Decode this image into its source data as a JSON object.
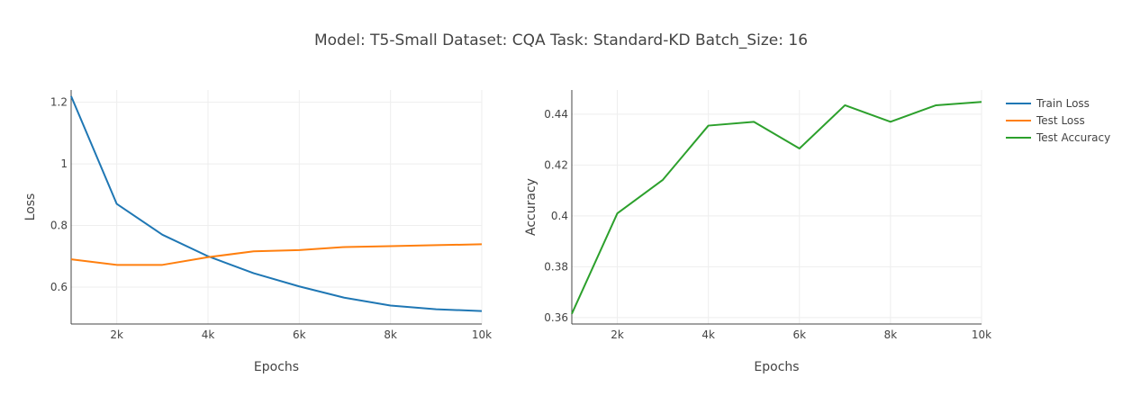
{
  "title": "Model: T5-Small Dataset: CQA Task: Standard-KD Batch_Size: 16",
  "legend": {
    "placement": "top-right",
    "items": [
      {
        "label": "Train Loss",
        "color": "#1f77b4"
      },
      {
        "label": "Test Loss",
        "color": "#ff7f0e"
      },
      {
        "label": "Test Accuracy",
        "color": "#2ca02c"
      }
    ]
  },
  "chart_data": [
    {
      "type": "line",
      "xlabel": "Epochs",
      "ylabel": "Loss",
      "x": [
        1000,
        2000,
        3000,
        4000,
        5000,
        6000,
        7000,
        8000,
        9000,
        10000
      ],
      "xlim": [
        1000,
        10000
      ],
      "ylim": [
        0.48,
        1.24
      ],
      "xticks": [
        2000,
        4000,
        6000,
        8000,
        10000
      ],
      "xtick_labels": [
        "2k",
        "4k",
        "6k",
        "8k",
        "10k"
      ],
      "yticks": [
        0.6,
        0.8,
        1.0,
        1.2
      ],
      "ytick_labels": [
        "0.6",
        "0.8",
        "1",
        "1.2"
      ],
      "grid": true,
      "series": [
        {
          "name": "Train Loss",
          "color": "#1f77b4",
          "values": [
            1.22,
            0.87,
            0.77,
            0.7,
            0.645,
            0.602,
            0.565,
            0.54,
            0.528,
            0.522
          ]
        },
        {
          "name": "Test Loss",
          "color": "#ff7f0e",
          "values": [
            0.69,
            0.672,
            0.672,
            0.697,
            0.716,
            0.72,
            0.73,
            0.733,
            0.736,
            0.739
          ]
        }
      ]
    },
    {
      "type": "line",
      "xlabel": "Epochs",
      "ylabel": "Accuracy",
      "x": [
        1000,
        2000,
        3000,
        4000,
        5000,
        6000,
        7000,
        8000,
        9000,
        10000
      ],
      "xlim": [
        1000,
        10000
      ],
      "ylim": [
        0.3575,
        0.4495
      ],
      "xticks": [
        2000,
        4000,
        6000,
        8000,
        10000
      ],
      "xtick_labels": [
        "2k",
        "4k",
        "6k",
        "8k",
        "10k"
      ],
      "yticks": [
        0.36,
        0.38,
        0.4,
        0.42,
        0.44
      ],
      "ytick_labels": [
        "0.36",
        "0.38",
        "0.4",
        "0.42",
        "0.44"
      ],
      "grid": true,
      "series": [
        {
          "name": "Test Accuracy",
          "color": "#2ca02c",
          "values": [
            0.3615,
            0.401,
            0.4142,
            0.4355,
            0.437,
            0.4265,
            0.4435,
            0.437,
            0.4435,
            0.4448
          ]
        }
      ]
    }
  ]
}
